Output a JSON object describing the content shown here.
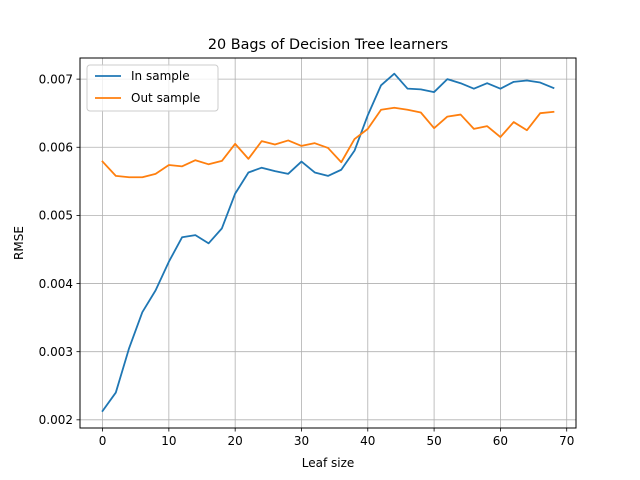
{
  "chart_data": {
    "type": "line",
    "title": "20 Bags of Decision Tree learners",
    "xlabel": "Leaf size",
    "ylabel": "RMSE",
    "xlim": [
      -3.4,
      71.4
    ],
    "ylim": [
      0.00188,
      0.00731
    ],
    "xticks": [
      0,
      10,
      20,
      30,
      40,
      50,
      60,
      70
    ],
    "yticks": [
      0.002,
      0.003,
      0.004,
      0.005,
      0.006,
      0.007
    ],
    "ytick_labels": [
      "0.002",
      "0.003",
      "0.004",
      "0.005",
      "0.006",
      "0.007"
    ],
    "grid": true,
    "legend_position": "top-left",
    "x": [
      0,
      2,
      4,
      6,
      8,
      10,
      12,
      14,
      16,
      18,
      20,
      22,
      24,
      26,
      28,
      30,
      32,
      34,
      36,
      38,
      40,
      42,
      44,
      46,
      48,
      50,
      52,
      54,
      56,
      58,
      60,
      62,
      64,
      66,
      68
    ],
    "series": [
      {
        "name": "In sample",
        "color": "#1f77b4",
        "values": [
          0.00213,
          0.0024,
          0.00305,
          0.00358,
          0.0039,
          0.00432,
          0.00468,
          0.00471,
          0.00459,
          0.00481,
          0.00532,
          0.00563,
          0.0057,
          0.00565,
          0.00561,
          0.00579,
          0.00563,
          0.00558,
          0.00567,
          0.00595,
          0.00647,
          0.00691,
          0.00708,
          0.00686,
          0.00685,
          0.00681,
          0.007,
          0.00694,
          0.00686,
          0.00694,
          0.00686,
          0.00696,
          0.00698,
          0.00695,
          0.00687
        ]
      },
      {
        "name": "Out sample",
        "color": "#ff7f0e",
        "values": [
          0.00579,
          0.00558,
          0.00556,
          0.00556,
          0.00561,
          0.00574,
          0.00572,
          0.00581,
          0.00575,
          0.0058,
          0.00605,
          0.00583,
          0.00609,
          0.00604,
          0.0061,
          0.00602,
          0.00606,
          0.00599,
          0.00578,
          0.00612,
          0.00627,
          0.00655,
          0.00658,
          0.00655,
          0.00651,
          0.00628,
          0.00645,
          0.00648,
          0.00627,
          0.00631,
          0.00615,
          0.00637,
          0.00625,
          0.0065,
          0.00652
        ]
      }
    ]
  }
}
